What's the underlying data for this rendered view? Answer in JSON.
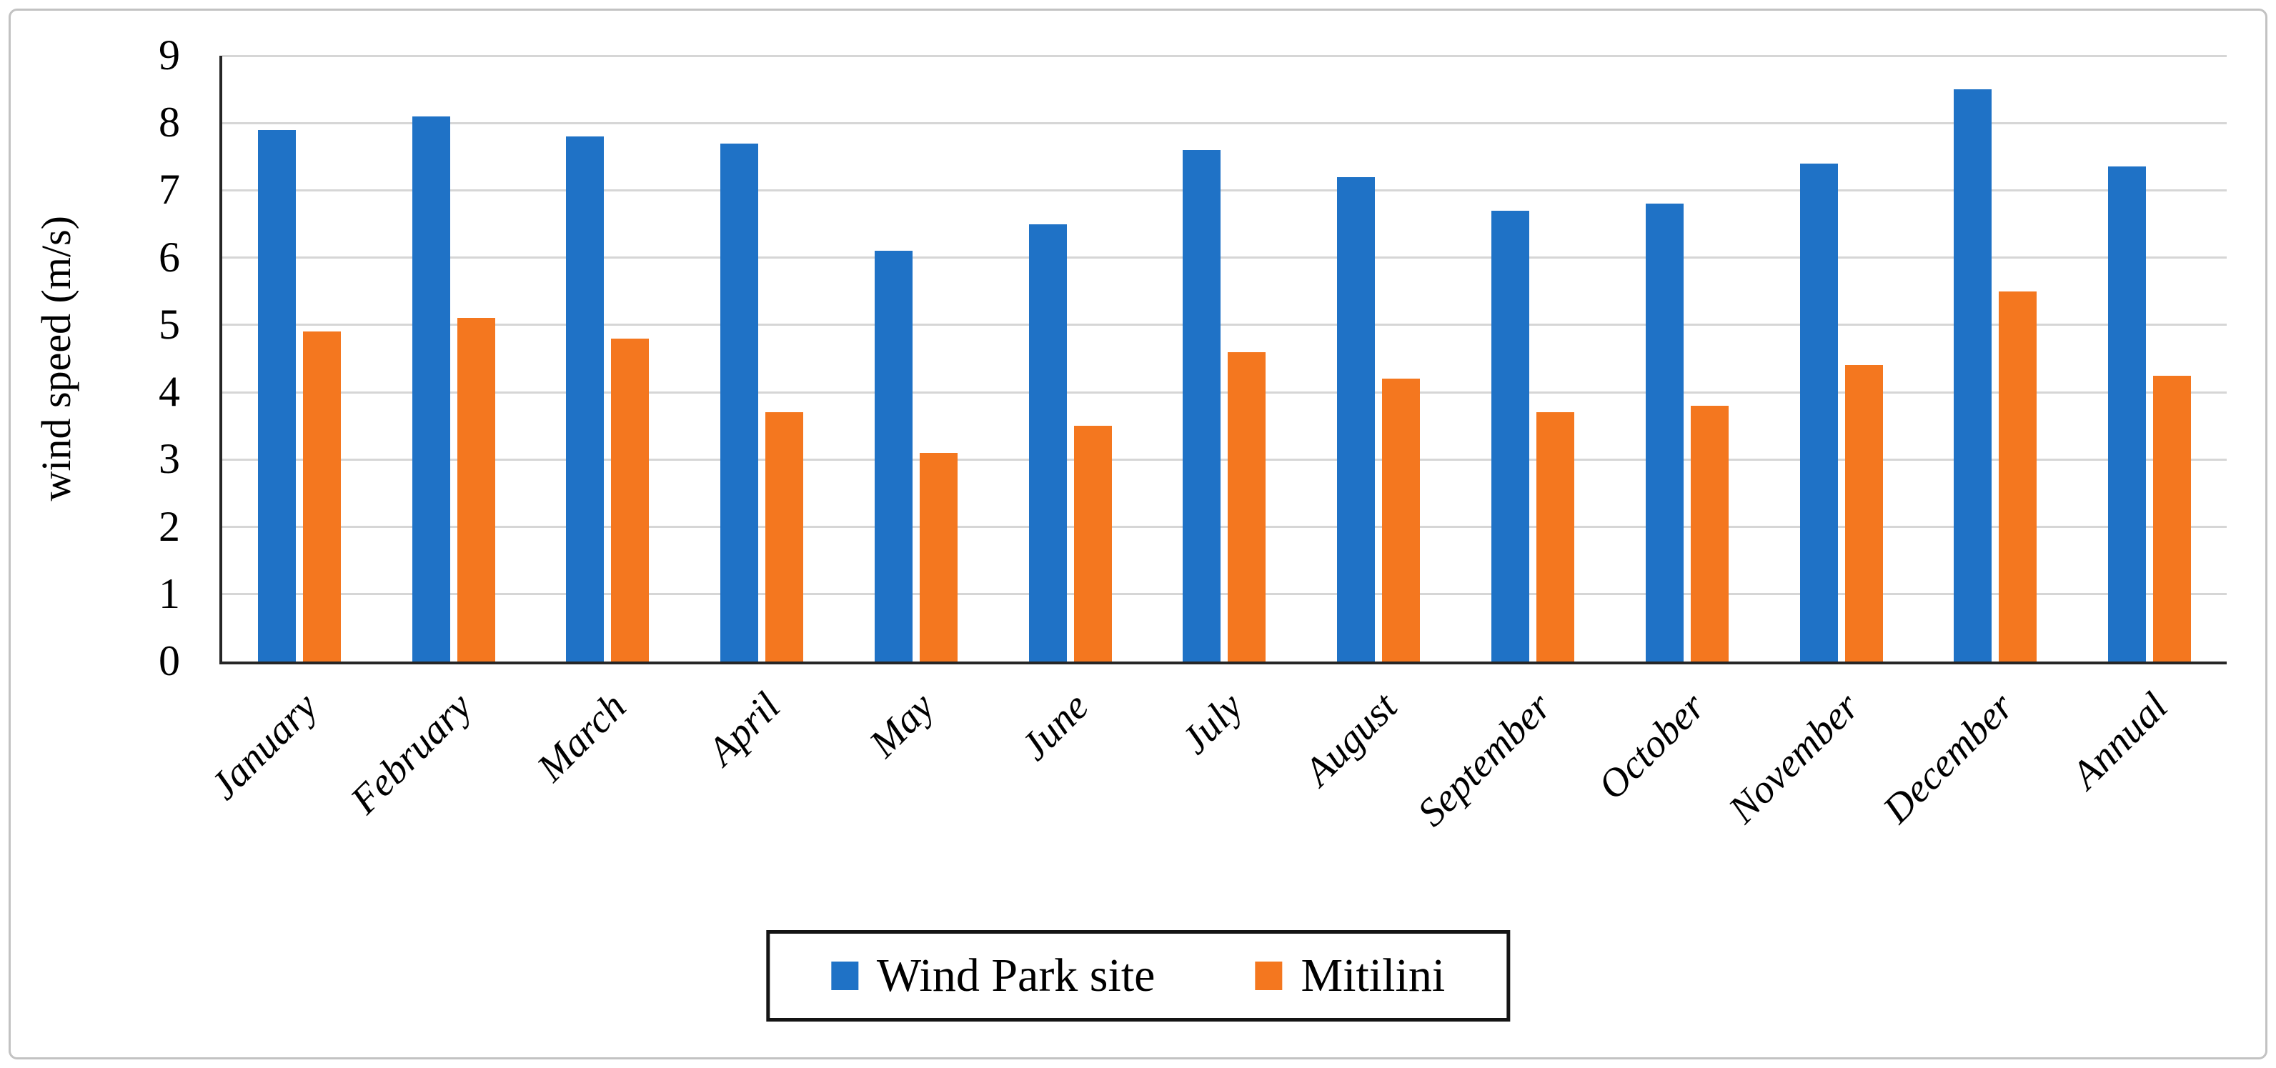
{
  "chart_data": {
    "type": "bar",
    "title": "",
    "xlabel": "",
    "ylabel": "wind speed (m/s)",
    "ylim": [
      0,
      9
    ],
    "yticks": [
      "0",
      "1",
      "2",
      "3",
      "4",
      "5",
      "6",
      "7",
      "8",
      "9"
    ],
    "grid": true,
    "legend_position": "bottom",
    "categories": [
      "January",
      "February",
      "March",
      "April",
      "May",
      "June",
      "July",
      "August",
      "September",
      "October",
      "November",
      "December",
      "Annual"
    ],
    "series": [
      {
        "name": "Wind Park site",
        "color": "#1f72c6",
        "values": [
          7.9,
          8.1,
          7.8,
          7.7,
          6.1,
          6.5,
          7.6,
          7.2,
          6.7,
          6.8,
          7.4,
          8.5,
          7.35
        ]
      },
      {
        "name": "Mitilini",
        "color": "#f4771f",
        "values": [
          4.9,
          5.1,
          4.8,
          3.7,
          3.1,
          3.5,
          4.6,
          4.2,
          3.7,
          3.8,
          4.4,
          5.5,
          4.25
        ]
      }
    ],
    "colors": {
      "gridline": "#d6d6d6",
      "axis": "#262626",
      "frame_border": "#c2c2c2",
      "text": "#000000"
    }
  }
}
